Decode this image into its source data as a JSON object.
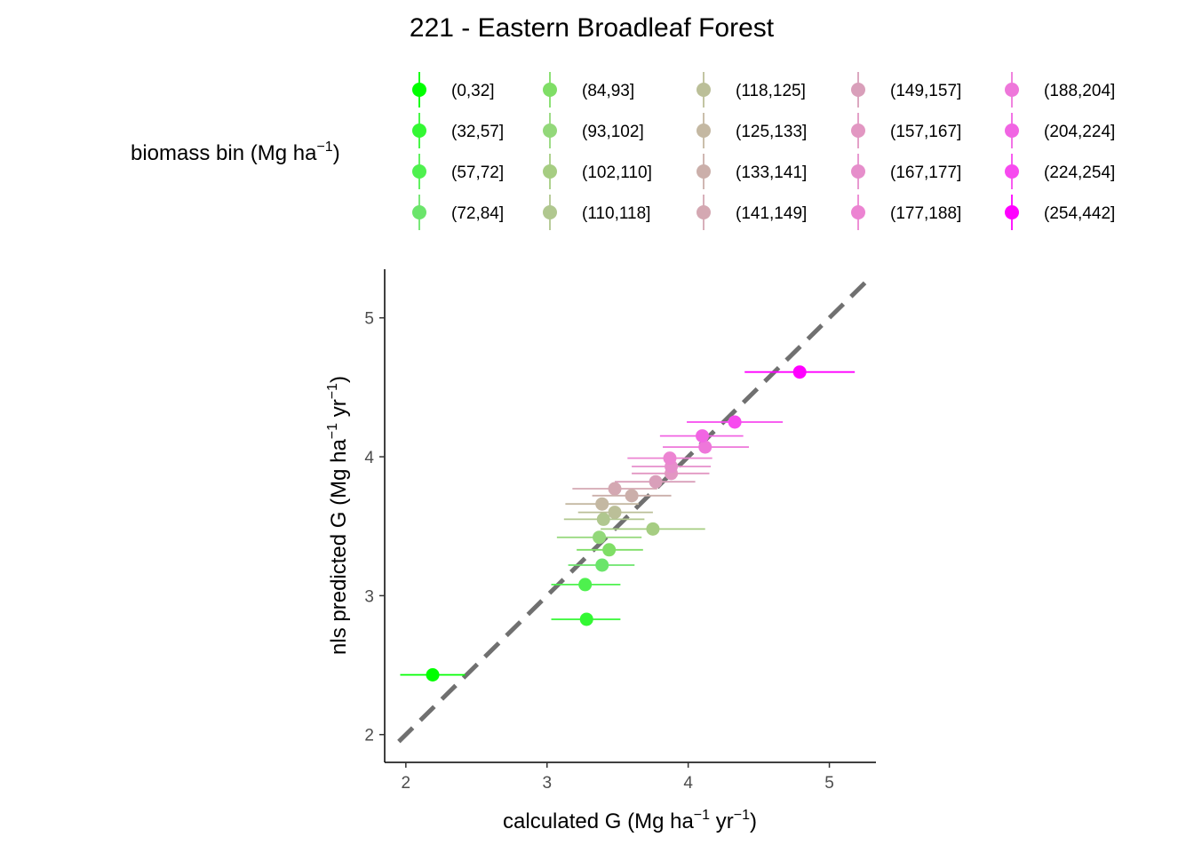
{
  "chart_data": {
    "type": "scatter",
    "title": "221 - Eastern Broadleaf Forest",
    "xlabel": {
      "base": "calculated G (Mg ha",
      "sup1": "−1",
      "mid": " yr",
      "sup2": "−1",
      "end": ")"
    },
    "ylabel": {
      "base": "nls predicted G (Mg ha",
      "sup1": "−1",
      "mid": " yr",
      "sup2": "−1",
      "end": ")"
    },
    "xlim": [
      1.85,
      5.33
    ],
    "ylim": [
      1.8,
      5.35
    ],
    "x_ticks": [
      2,
      3,
      4,
      5
    ],
    "y_ticks": [
      2,
      3,
      4,
      5
    ],
    "grid": false,
    "reference_line": {
      "slope": 1,
      "intercept": 0,
      "style": "dashed",
      "color": "#707070"
    },
    "legend": {
      "title": {
        "base": "biomass bin (Mg ha",
        "sup": "−1",
        "end": ")"
      },
      "placement": "top",
      "columns": 5
    },
    "series": [
      {
        "name": "(0,32]",
        "color": "#00FF00",
        "x": 2.19,
        "y": 2.43,
        "xerr": [
          1.96,
          2.42
        ]
      },
      {
        "name": "(32,57]",
        "color": "#33F833",
        "x": 3.28,
        "y": 2.83,
        "xerr": [
          3.03,
          3.52
        ]
      },
      {
        "name": "(57,72]",
        "color": "#4EF14E",
        "x": 3.27,
        "y": 3.08,
        "xerr": [
          3.03,
          3.52
        ]
      },
      {
        "name": "(72,84]",
        "color": "#6BE56B",
        "x": 3.39,
        "y": 3.22,
        "xerr": [
          3.15,
          3.62
        ]
      },
      {
        "name": "(84,93]",
        "color": "#7FDE66",
        "x": 3.44,
        "y": 3.33,
        "xerr": [
          3.21,
          3.68
        ]
      },
      {
        "name": "(93,102]",
        "color": "#93D87A",
        "x": 3.37,
        "y": 3.42,
        "xerr": [
          3.07,
          3.67
        ]
      },
      {
        "name": "(102,110]",
        "color": "#A6CD82",
        "x": 3.75,
        "y": 3.48,
        "xerr": [
          3.38,
          4.12
        ]
      },
      {
        "name": "(110,118]",
        "color": "#B0C78F",
        "x": 3.4,
        "y": 3.55,
        "xerr": [
          3.12,
          3.69
        ]
      },
      {
        "name": "(118,125]",
        "color": "#BBBF98",
        "x": 3.48,
        "y": 3.6,
        "xerr": [
          3.22,
          3.75
        ]
      },
      {
        "name": "(125,133]",
        "color": "#C4B8A2",
        "x": 3.39,
        "y": 3.66,
        "xerr": [
          3.13,
          3.65
        ]
      },
      {
        "name": "(133,141]",
        "color": "#CBAFAA",
        "x": 3.6,
        "y": 3.72,
        "xerr": [
          3.32,
          3.88
        ]
      },
      {
        "name": "(141,149]",
        "color": "#D4A8B2",
        "x": 3.48,
        "y": 3.77,
        "xerr": [
          3.18,
          3.78
        ]
      },
      {
        "name": "(149,157]",
        "color": "#D99FBA",
        "x": 3.77,
        "y": 3.82,
        "xerr": [
          3.48,
          4.05
        ]
      },
      {
        "name": "(157,167]",
        "color": "#E297C2",
        "x": 3.88,
        "y": 3.88,
        "xerr": [
          3.6,
          4.15
        ]
      },
      {
        "name": "(167,177]",
        "color": "#E68ECB",
        "x": 3.88,
        "y": 3.93,
        "xerr": [
          3.6,
          4.16
        ]
      },
      {
        "name": "(177,188]",
        "color": "#EC84D2",
        "x": 3.87,
        "y": 3.99,
        "xerr": [
          3.57,
          4.17
        ]
      },
      {
        "name": "(188,204]",
        "color": "#EE77DA",
        "x": 4.12,
        "y": 4.07,
        "xerr": [
          3.82,
          4.43
        ]
      },
      {
        "name": "(204,224]",
        "color": "#F165E3",
        "x": 4.1,
        "y": 4.15,
        "xerr": [
          3.8,
          4.39
        ]
      },
      {
        "name": "(224,254]",
        "color": "#F74AEF",
        "x": 4.33,
        "y": 4.25,
        "xerr": [
          3.99,
          4.67
        ]
      },
      {
        "name": "(254,442]",
        "color": "#FF00FF",
        "x": 4.79,
        "y": 4.61,
        "xerr": [
          4.4,
          5.18
        ]
      }
    ]
  }
}
